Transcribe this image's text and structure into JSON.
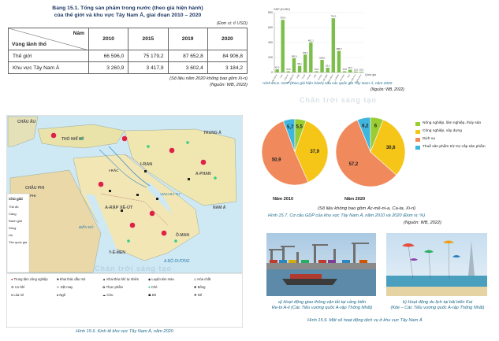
{
  "table": {
    "title_line1": "Bảng 15.1. Tổng sản phẩm trong nước (theo giá hiện hành)",
    "title_line2": "của thế giới và khu vực Tây Nam Á, giai đoạn 2010 – 2020",
    "unit": "(Đơn vị: tỉ USD)",
    "header_year_label": "Năm",
    "header_region_label": "Vùng lãnh thổ",
    "columns": [
      "2010",
      "2015",
      "2019",
      "2020"
    ],
    "rows": [
      {
        "region": "Thế giới",
        "values": [
          "66 596,0",
          "75 179,2",
          "87 652,8",
          "84 906,8"
        ]
      },
      {
        "region": "Khu vực Tây Nam Á",
        "values": [
          "3 260,9",
          "3 417,9",
          "3 602,4",
          "3 184,2"
        ]
      }
    ],
    "note": "(Số liệu năm 2020 không bao gồm Xi-ri)",
    "source": "(Nguồn: WB, 2022)"
  },
  "map": {
    "caption": "Hình 15.6. Kinh tế khu vực Tây Nam Á, năm 2020",
    "labels": {
      "chau_au": "CHÂU ÂU",
      "tho_nhi_ky": "THỔ NHĨ KỲ",
      "i_ran": "I-RAN",
      "chau_phi": "CHÂU PHI",
      "a_rap_xe_ut": "A-RẬP XÊ-ÚT",
      "bien_do": "BIỂN ĐỎ",
      "vinh_ba_tu": "VỊNH BA TƯ",
      "y_e_men": "Y-Ê-MEN",
      "o_man": "Ô-MAN",
      "a_dap_do": "A ĐỘ DƯƠNG",
      "a_phan": "A-PHAN",
      "nam_a": "NAM Á",
      "trung_a": "TRUNG Á",
      "i_rac": "I-RẮC",
      "phi": "PHI"
    },
    "legend_title": "Chú giải",
    "legend_items": [
      "Trung tâm công nghiệp",
      "Khai thác dầu mỏ",
      "Khai thác khí tự nhiên",
      "Luyện kim màu",
      "Hóa chất",
      "Cơ khí",
      "Dệt may",
      "Thực phẩm",
      "Chè",
      "Bông",
      "Lúa mì",
      "Ngô",
      "Cừu",
      "Bò",
      "Dê"
    ],
    "left_legend": [
      "Thủ đô",
      "Cảng",
      "Ranh giới",
      "Sông",
      "Hồ",
      "Tên quốc gia"
    ]
  },
  "bar_chart": {
    "caption": "Hình 15.6. GDP (theo giá hiện hành) của các quốc gia Tây Nam Á, năm 2020",
    "source": "(Nguồn: WB, 2022)"
  },
  "chart_data": [
    {
      "type": "bar",
      "ylabel": "GDP (tỉ USD)",
      "xlabel": "Quốc gia",
      "categories": [
        "A-rập Xê-út",
        "I-ran",
        "I-xra-en",
        "Thổ Nhĩ Kỳ",
        "UAE",
        "Ca-ta",
        "Cô-oét",
        "I-rắc",
        "Ô-man",
        "Bờ biển",
        "Gioóc-đa-ni",
        "Li-băng",
        "Y-ê-men",
        "Xi-ri",
        "Ác-mê-ni-a",
        "Gioóc-gi-a"
      ],
      "values": [
        42.0,
        703.4,
        15.8,
        189.0,
        88.1,
        239.1,
        401.1,
        15.8,
        168.0,
        63.0,
        724.0,
        288.0,
        15.8,
        36.3,
        12.6,
        10.0
      ],
      "data_labels": [
        "42,0",
        "703,4",
        "15,8",
        "189,0",
        "88,1",
        "239,1",
        "401,1",
        "15,8",
        "168,0",
        "63,0",
        "724,0",
        "288,0",
        "15,8",
        "36,3",
        "12,6",
        "10,0"
      ],
      "ylim": [
        0,
        800
      ]
    },
    {
      "type": "pie",
      "title": "Năm 2010",
      "categories": [
        "Nông nghiệp, lâm nghiệp, thủy sản",
        "Công nghiệp, xây dựng",
        "Dịch vụ",
        "Thuế sản phẩm trừ trợ cấp sản phẩm"
      ],
      "values": [
        5.5,
        37.9,
        50.9,
        5.7
      ]
    },
    {
      "type": "pie",
      "title": "Năm 2020",
      "categories": [
        "Nông nghiệp, lâm nghiệp, thủy sản",
        "Công nghiệp, xây dựng",
        "Dịch vụ",
        "Thuế sản phẩm trừ trợ cấp sản phẩm"
      ],
      "values": [
        6.0,
        30.6,
        57.2,
        6.2
      ]
    }
  ],
  "pies": {
    "legend": [
      {
        "label": "Nông nghiệp, lâm nghiệp, thủy sản",
        "color": "#9acd32"
      },
      {
        "label": "Công nghiệp, xây dựng",
        "color": "#f5c518"
      },
      {
        "label": "Dịch vụ",
        "color": "#f08a5d"
      },
      {
        "label": "Thuế sản phẩm trừ trợ cấp sản phẩm",
        "color": "#3fb6e0"
      }
    ],
    "year_2010": "Năm 2010",
    "year_2020": "Năm 2020",
    "note": "(Số liệu không bao gồm Ác-mê-ni-a, Ca-ta, Xi-ri)",
    "caption": "Hình 15.7. Cơ cấu GDP của khu vực Tây Nam Á, năm 2010 và 2020 (Đơn vị: %)",
    "source": "(Nguồn: WB, 2022)"
  },
  "photos": {
    "a_caption_line1": "a) Hoạt động giao thông vận tải tại cảng biển",
    "a_caption_line2": "Re-bi A-li (Các Tiểu vương quốc A-rập Thống Nhất)",
    "b_caption_line1": "b) Hoạt động du lịch tại bãi biển Kai",
    "b_caption_line2": "(Kite – Các Tiểu vương quốc A-rập Thống Nhất)",
    "figure_caption": "Hình 15.9. Một số hoạt động dịch vụ ở khu vực Tây Nam Á"
  },
  "watermark": "Chân trời sáng tạo"
}
